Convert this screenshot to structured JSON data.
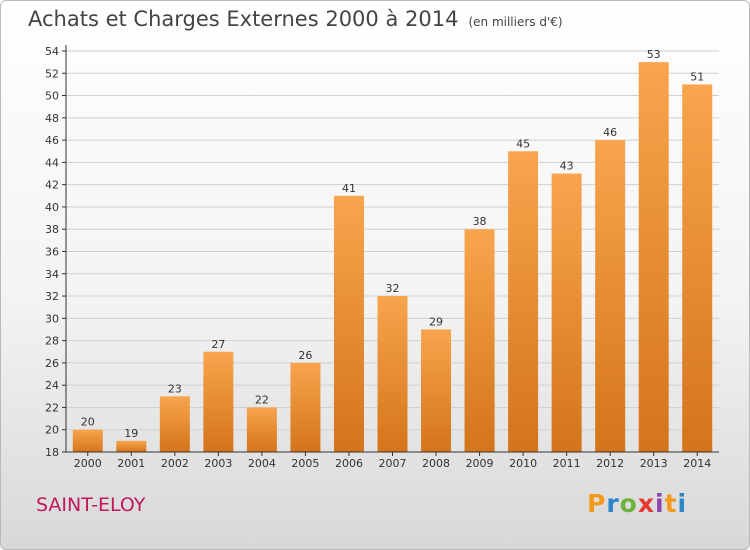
{
  "title": "Achats et Charges Externes 2000 à 2014",
  "unit": "(en milliers d'€)",
  "commune": "SAINT-ELOY",
  "brand": "Proxiti",
  "colors": {
    "bar_light": "#f8a54d",
    "bar_dark": "#d4741b",
    "axis": "#333333",
    "grid": "#d0d0d0",
    "commune_text": "#c2185b",
    "brand_letters": [
      "#f39a1d",
      "#2a87c9",
      "#6cb33e",
      "#e53935",
      "#8e44ad",
      "#f39a1d",
      "#2a87c9"
    ]
  },
  "chart_data": {
    "type": "bar",
    "categories": [
      "2000",
      "2001",
      "2002",
      "2003",
      "2004",
      "2005",
      "2006",
      "2007",
      "2008",
      "2009",
      "2010",
      "2011",
      "2012",
      "2013",
      "2014"
    ],
    "values": [
      20,
      19,
      23,
      27,
      22,
      26,
      41,
      32,
      29,
      38,
      45,
      43,
      46,
      53,
      51
    ],
    "ylim": [
      18,
      54
    ],
    "yticks": [
      18,
      20,
      22,
      24,
      26,
      28,
      30,
      32,
      34,
      36,
      38,
      40,
      42,
      44,
      46,
      48,
      50,
      52,
      54
    ],
    "grid": true,
    "xlabel": "",
    "ylabel": ""
  }
}
